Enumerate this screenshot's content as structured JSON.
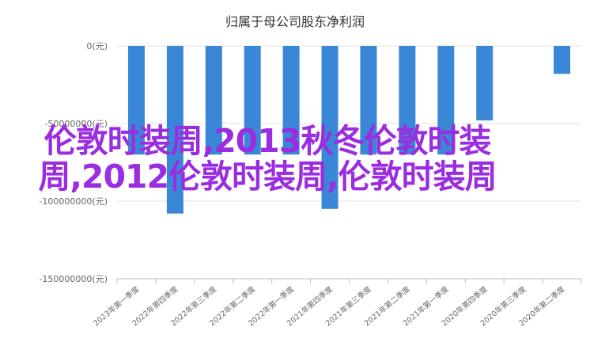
{
  "chart_data": {
    "type": "bar",
    "title": "归属于母公司股东净利润",
    "categories": [
      "2023年第一季度",
      "2022年第四季度",
      "2022年第三季度",
      "2022年第二季度",
      "2022年第一季度",
      "2021年第四季度",
      "2021年第三季度",
      "2021年第二季度",
      "2021年第一季度",
      "2020年第四季度",
      "2020年第三季度",
      "2020年第二季度"
    ],
    "values": [
      -70000000,
      -108000000,
      -70000000,
      -70000000,
      -70000000,
      -105000000,
      -70000000,
      -70000000,
      -70000000,
      -48000000,
      0,
      -18000000
    ],
    "ylim": [
      -150000000,
      0
    ],
    "yticks": [
      0,
      -50000000,
      -100000000,
      -150000000
    ],
    "ytick_labels": [
      "0(元)",
      "-50000000(元)",
      "-100000000(元)",
      "-150000000(元)"
    ],
    "grid": true,
    "bar_color": "#3a87d8"
  },
  "overlay_text": "伦敦时装周,2013秋冬伦敦时装周,2012伦敦时装周,伦敦时装周"
}
